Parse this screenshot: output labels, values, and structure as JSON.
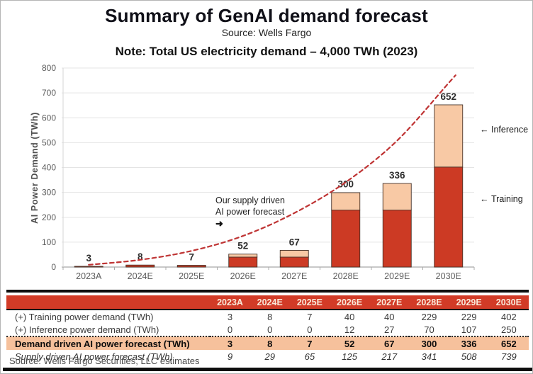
{
  "title": "Summary of GenAI demand forecast",
  "subtitle": "Source: Wells Fargo",
  "note": "Note: Total US electricity demand – 4,000 TWh (2023)",
  "chart_data": {
    "type": "bar",
    "subtype": "stacked-bars-with-dashed-line",
    "categories": [
      "2023A",
      "2024E",
      "2025E",
      "2026E",
      "2027E",
      "2028E",
      "2029E",
      "2030E"
    ],
    "series": [
      {
        "name": "Training",
        "values": [
          3,
          8,
          7,
          40,
          40,
          229,
          229,
          402
        ]
      },
      {
        "name": "Inference",
        "values": [
          0,
          0,
          0,
          12,
          27,
          70,
          107,
          250
        ]
      }
    ],
    "bar_total_labels": [
      3,
      8,
      7,
      52,
      67,
      300,
      336,
      652
    ],
    "line_series": {
      "name": "Supply driven AI power forecast",
      "values": [
        9,
        29,
        65,
        125,
        217,
        341,
        508,
        739
      ],
      "style": "dashed"
    },
    "title": "",
    "xlabel": "",
    "ylabel": "AI Power Demand (TWh)",
    "ylim": [
      0,
      800
    ],
    "ytick_step": 100,
    "grid": "horizontal",
    "annotation": {
      "lines": [
        "Our supply driven",
        "AI power forecast"
      ],
      "arrow": "➜"
    },
    "legend": [
      {
        "arrow": "←",
        "label": "Inference"
      },
      {
        "arrow": "←",
        "label": "Training"
      }
    ],
    "legend_position": "right-of-plot"
  },
  "table": {
    "header": [
      "",
      "2023A",
      "2024E",
      "2025E",
      "2026E",
      "2027E",
      "2028E",
      "2029E",
      "2030E"
    ],
    "rows": [
      {
        "key": "training",
        "label": "(+) Training power demand (TWh)",
        "values": [
          3,
          8,
          7,
          40,
          40,
          229,
          229,
          402
        ],
        "style": "normal"
      },
      {
        "key": "inference",
        "label": "(+) Inference power demand (TWh)",
        "values": [
          0,
          0,
          0,
          12,
          27,
          70,
          107,
          250
        ],
        "style": "dotted"
      },
      {
        "key": "demand-driven",
        "label": "Demand driven AI power forecast (TWh)",
        "values": [
          3,
          8,
          7,
          52,
          67,
          300,
          336,
          652
        ],
        "style": "highlight"
      },
      {
        "key": "supply-driven",
        "label": "Supply driven AI power forecast (TWh)",
        "values": [
          9,
          29,
          65,
          125,
          217,
          341,
          508,
          739
        ],
        "style": "italic"
      }
    ],
    "source": "Source: Wells Fargo Securities, LLC estimates"
  },
  "colors": {
    "bar_training": "#cc3a24",
    "bar_inference": "#f8c9a5",
    "bar_outline": "#47342a",
    "dashed_line": "#bf3434",
    "grid_line": "#e4e4e4",
    "axis_line": "#b5b5b5",
    "tick_text": "#5c5c5c",
    "table_header_bg": "#d23b27",
    "table_header_text": "#f9e9da",
    "highlight_row_bg": "#f6c19c",
    "value_label_text": "#2e2e2e"
  }
}
